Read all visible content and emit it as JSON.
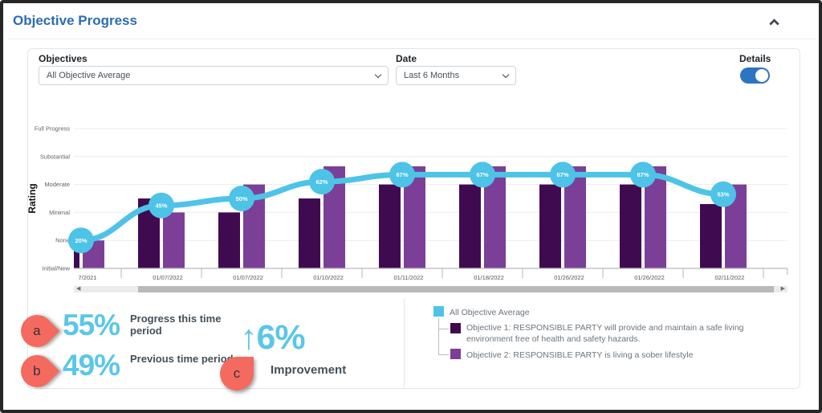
{
  "header": {
    "title": "Objective Progress"
  },
  "icons": {
    "collapse": "chevron-up-icon",
    "select_caret": "chevron-down-icon",
    "scroll_left": "triangle-left-icon",
    "scroll_right": "triangle-right-icon"
  },
  "filters": {
    "objectives_label": "Objectives",
    "objectives_value": "All Objective Average",
    "date_label": "Date",
    "date_value": "Last 6 Months",
    "details_label": "Details",
    "details_on": true
  },
  "chart_data": {
    "type": "bar",
    "title": "",
    "y_axis_title": "Rating",
    "y_levels": [
      "Initial/New",
      "None",
      "Minimal",
      "Moderate",
      "Substantial",
      "Full Progress"
    ],
    "categories": [
      "7/2021",
      "01/07/2022",
      "01/07/2022",
      "01/10/2022",
      "01/11/2022",
      "01/18/2022",
      "01/26/2022",
      "01/26/2022",
      "02/11/2022"
    ],
    "series": [
      {
        "name": "Objective 1: RESPONSIBLE PARTY will provide and maintain a safe living environment free of health and safety hazards.",
        "color": "#400a51",
        "values_units": [
          0.8,
          2.5,
          2,
          2.5,
          3,
          3,
          3,
          3,
          2.3
        ]
      },
      {
        "name": "Objective 2: RESPONSIBLE PARTY is living a sober lifestyle",
        "color": "#7c3f97",
        "values_units": [
          1,
          2,
          3,
          3.65,
          3.65,
          3.65,
          3.65,
          3.65,
          3
        ]
      }
    ],
    "line": {
      "name": "All Objective Average",
      "color": "#4ec3e8",
      "values_pct": [
        20,
        45,
        50,
        62,
        67,
        67,
        67,
        67,
        53
      ],
      "point_labels": [
        "20%",
        "45%",
        "50%",
        "62%",
        "67%",
        "67%",
        "67%",
        "67%",
        "53%"
      ]
    },
    "ylim_units": [
      0,
      5
    ],
    "grid": true,
    "legend_position": "bottom-right"
  },
  "summary": {
    "current": {
      "marker": "a",
      "value": "55%",
      "label": "Progress this time period"
    },
    "previous": {
      "marker": "b",
      "value": "49%",
      "label": "Previous time period"
    },
    "improvement": {
      "marker": "c",
      "value": "↑6%",
      "label": "Improvement"
    }
  },
  "legend": {
    "average_label": "All Objective Average",
    "average_color": "#4ec3e8",
    "objectives": [
      {
        "text": "Objective 1: RESPONSIBLE PARTY will provide and maintain a safe living environment free of health and safety hazards.",
        "color": "#400a51"
      },
      {
        "text": "Objective 2: RESPONSIBLE PARTY is living a sober lifestyle",
        "color": "#7c3f97"
      }
    ]
  }
}
